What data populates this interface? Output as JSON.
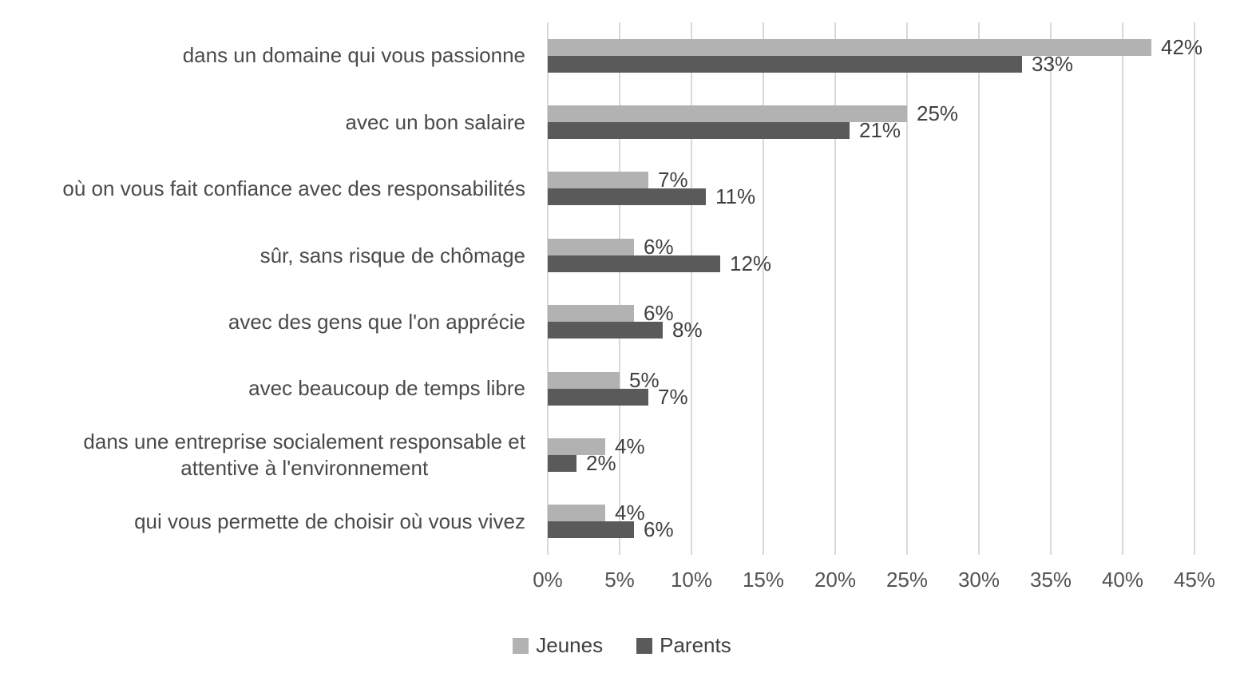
{
  "chart_data": {
    "type": "bar",
    "orientation": "horizontal",
    "title": "",
    "categories": [
      "dans un domaine qui vous passionne",
      "avec un bon salaire",
      "où on vous fait confiance avec des responsabilités",
      "sûr, sans risque de chômage",
      "avec des gens que l'on apprécie",
      "avec beaucoup de temps libre",
      "dans une entreprise socialement responsable et\nattentive à l'environnement",
      "qui vous permette de choisir où vous vivez"
    ],
    "series": [
      {
        "name": "Jeunes",
        "color": "#b2b2b2",
        "values": [
          42,
          25,
          7,
          6,
          6,
          5,
          4,
          4
        ]
      },
      {
        "name": "Parents",
        "color": "#5a5a5a",
        "values": [
          33,
          21,
          11,
          12,
          8,
          7,
          2,
          6
        ]
      }
    ],
    "value_suffix": "%",
    "xlim": [
      0,
      45
    ],
    "x_ticks": [
      "0%",
      "5%",
      "10%",
      "15%",
      "20%",
      "25%",
      "30%",
      "35%",
      "40%",
      "45%"
    ],
    "grid": true,
    "legend_position": "bottom",
    "data_labels": "outside-end"
  }
}
